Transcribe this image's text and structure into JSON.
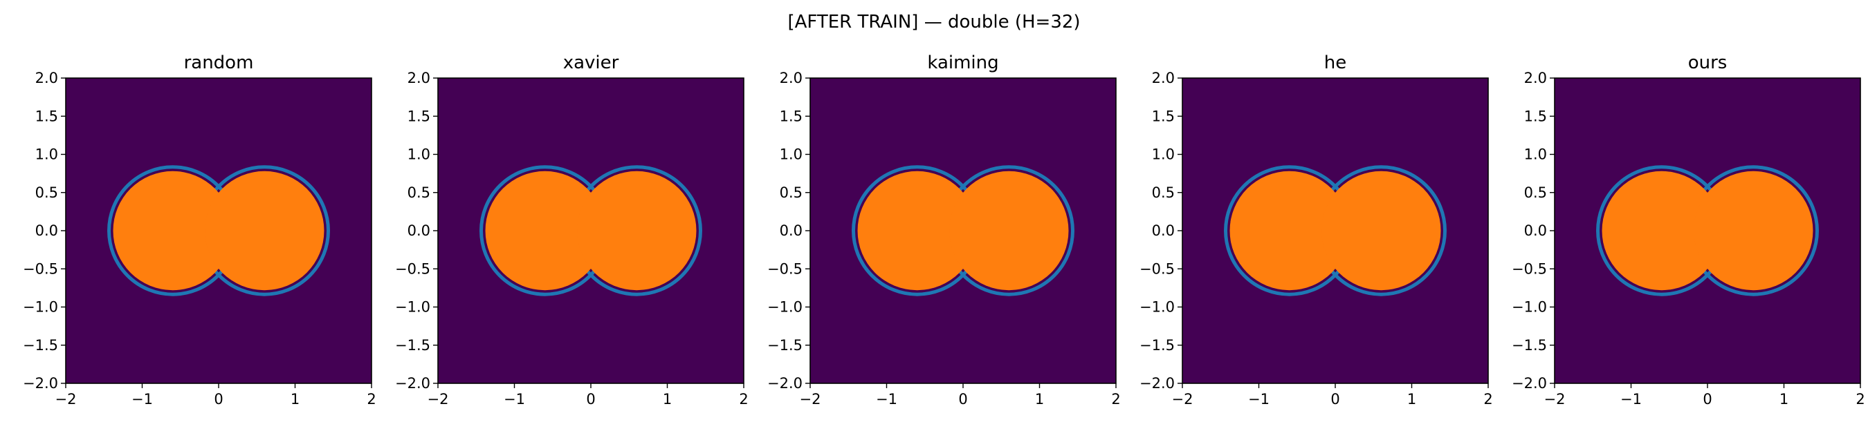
{
  "figure": {
    "suptitle": "[AFTER TRAIN] — double (H=32)"
  },
  "chart_data": [
    {
      "type": "heatmap",
      "title": "random",
      "xlabel": "",
      "ylabel": "",
      "xlim": [
        -2,
        2
      ],
      "ylim": [
        -2,
        2
      ],
      "xticks": [
        -2,
        -1,
        0,
        1,
        2
      ],
      "yticks": [
        -2.0,
        -1.5,
        -1.0,
        -0.5,
        0.0,
        0.5,
        1.0,
        1.5,
        2.0
      ],
      "xtick_labels": [
        "−2",
        "−1",
        "0",
        "1",
        "2"
      ],
      "ytick_labels": [
        "−2.0",
        "−1.5",
        "−1.0",
        "−0.5",
        "0.0",
        "0.5",
        "1.0",
        "1.5",
        "2.0"
      ],
      "grid": false,
      "decision_region": {
        "shape": "union of two discs",
        "centers": [
          [
            -0.6,
            0.0
          ],
          [
            0.6,
            0.0
          ]
        ],
        "radius": 0.78
      }
    },
    {
      "type": "heatmap",
      "title": "xavier",
      "xlabel": "",
      "ylabel": "",
      "xlim": [
        -2,
        2
      ],
      "ylim": [
        -2,
        2
      ],
      "xticks": [
        -2,
        -1,
        0,
        1,
        2
      ],
      "yticks": [
        -2.0,
        -1.5,
        -1.0,
        -0.5,
        0.0,
        0.5,
        1.0,
        1.5,
        2.0
      ],
      "xtick_labels": [
        "−2",
        "−1",
        "0",
        "1",
        "2"
      ],
      "ytick_labels": [
        "−2.0",
        "−1.5",
        "−1.0",
        "−0.5",
        "0.0",
        "0.5",
        "1.0",
        "1.5",
        "2.0"
      ],
      "grid": false,
      "decision_region": {
        "shape": "union of two discs",
        "centers": [
          [
            -0.6,
            0.0
          ],
          [
            0.6,
            0.0
          ]
        ],
        "radius": 0.78
      }
    },
    {
      "type": "heatmap",
      "title": "kaiming",
      "xlabel": "",
      "ylabel": "",
      "xlim": [
        -2,
        2
      ],
      "ylim": [
        -2,
        2
      ],
      "xticks": [
        -2,
        -1,
        0,
        1,
        2
      ],
      "yticks": [
        -2.0,
        -1.5,
        -1.0,
        -0.5,
        0.0,
        0.5,
        1.0,
        1.5,
        2.0
      ],
      "xtick_labels": [
        "−2",
        "−1",
        "0",
        "1",
        "2"
      ],
      "ytick_labels": [
        "−2.0",
        "−1.5",
        "−1.0",
        "−0.5",
        "0.0",
        "0.5",
        "1.0",
        "1.5",
        "2.0"
      ],
      "grid": false,
      "decision_region": {
        "shape": "union of two discs",
        "centers": [
          [
            -0.6,
            0.0
          ],
          [
            0.6,
            0.0
          ]
        ],
        "radius": 0.78
      }
    },
    {
      "type": "heatmap",
      "title": "he",
      "xlabel": "",
      "ylabel": "",
      "xlim": [
        -2,
        2
      ],
      "ylim": [
        -2,
        2
      ],
      "xticks": [
        -2,
        -1,
        0,
        1,
        2
      ],
      "yticks": [
        -2.0,
        -1.5,
        -1.0,
        -0.5,
        0.0,
        0.5,
        1.0,
        1.5,
        2.0
      ],
      "xtick_labels": [
        "−2",
        "−1",
        "0",
        "1",
        "2"
      ],
      "ytick_labels": [
        "−2.0",
        "−1.5",
        "−1.0",
        "−0.5",
        "0.0",
        "0.5",
        "1.0",
        "1.5",
        "2.0"
      ],
      "grid": false,
      "decision_region": {
        "shape": "union of two discs",
        "centers": [
          [
            -0.6,
            0.0
          ],
          [
            0.6,
            0.0
          ]
        ],
        "radius": 0.78
      }
    },
    {
      "type": "heatmap",
      "title": "ours",
      "xlabel": "",
      "ylabel": "",
      "xlim": [
        -2,
        2
      ],
      "ylim": [
        -2,
        2
      ],
      "xticks": [
        -2,
        -1,
        0,
        1,
        2
      ],
      "yticks": [
        -2.0,
        -1.5,
        -1.0,
        -0.5,
        0.0,
        0.5,
        1.0,
        1.5,
        2.0
      ],
      "xtick_labels": [
        "−2",
        "−1",
        "0",
        "1",
        "2"
      ],
      "ytick_labels": [
        "−2.0",
        "−1.5",
        "−1.0",
        "−0.5",
        "0.0",
        "0.5",
        "1.0",
        "1.5",
        "2.0"
      ],
      "grid": false,
      "decision_region": {
        "shape": "union of two discs",
        "centers": [
          [
            -0.6,
            0.0
          ],
          [
            0.6,
            0.0
          ]
        ],
        "radius": 0.78
      }
    }
  ],
  "colors": {
    "background_dark": "#440154",
    "background_noise": "#808080",
    "region_fill": "#ff7f0e",
    "region_speckle": "#fde725",
    "boundary": "#1f77b4",
    "boundary_accent": "#35b779"
  }
}
